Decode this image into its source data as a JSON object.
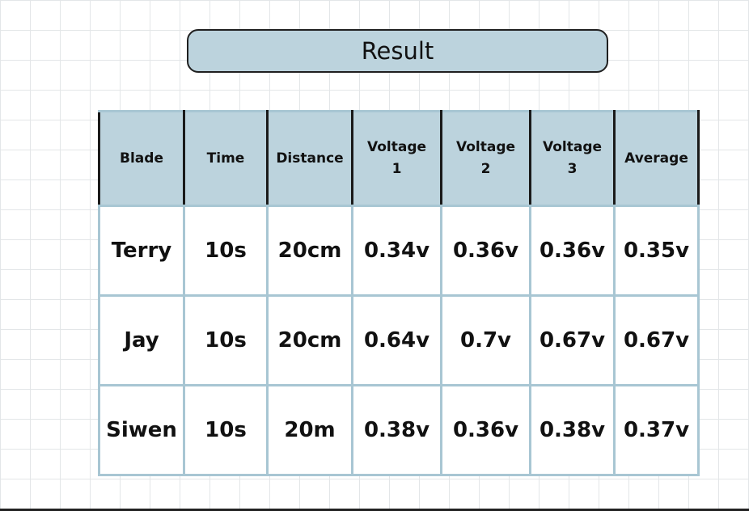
{
  "title": "Result",
  "table": {
    "headers": [
      [
        "Blade"
      ],
      [
        "Time"
      ],
      [
        "Distance"
      ],
      [
        "Voltage",
        "1"
      ],
      [
        "Voltage",
        "2"
      ],
      [
        "Voltage",
        "3"
      ],
      [
        "Average"
      ]
    ],
    "rows": [
      [
        "Terry",
        "10s",
        "20cm",
        "0.34v",
        "0.36v",
        "0.36v",
        "0.35v"
      ],
      [
        "Jay",
        "10s",
        "20cm",
        "0.64v",
        "0.7v",
        "0.67v",
        "0.67v"
      ],
      [
        "Siwen",
        "10s",
        "20m",
        "0.38v",
        "0.36v",
        "0.38v",
        "0.37v"
      ]
    ]
  },
  "colors": {
    "header_fill": "#bcd3dd",
    "cell_border": "#a8c6d3",
    "dark_border": "#1a1a1a"
  }
}
